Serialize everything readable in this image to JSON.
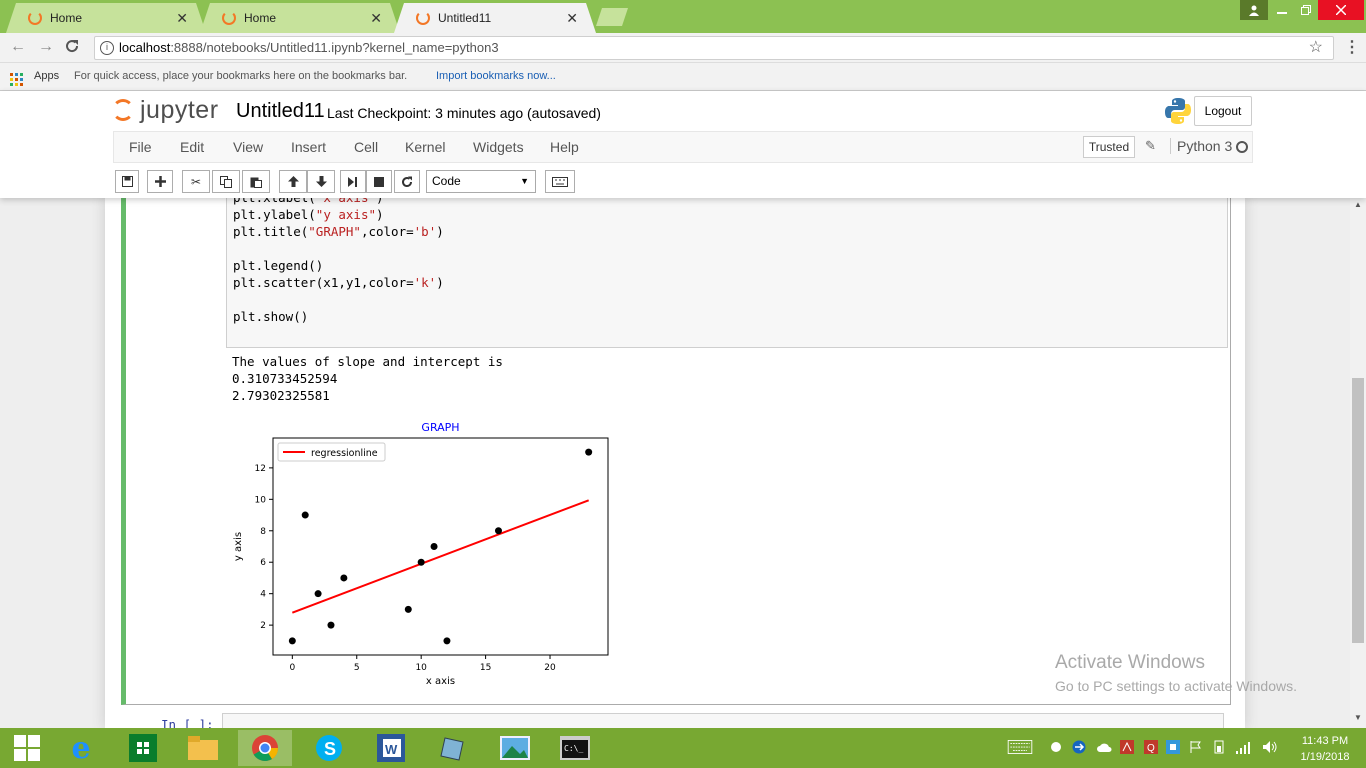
{
  "browser": {
    "tabs": [
      {
        "label": "Home"
      },
      {
        "label": "Home"
      },
      {
        "label": "Untitled11"
      }
    ],
    "tab_close": "✕",
    "url_host": "localhost",
    "url_rest": ":8888/notebooks/Untitled11.ipynb?kernel_name=python3",
    "bookmarks": {
      "apps_label": "Apps",
      "hint": "For quick access, place your bookmarks here on the bookmarks bar.",
      "import_link": "Import bookmarks now..."
    }
  },
  "jupyter": {
    "logo_text": "jupyter",
    "notebook_name": "Untitled11",
    "checkpoint": "Last Checkpoint: 3 minutes ago (autosaved)",
    "logout_label": "Logout",
    "menu": [
      "File",
      "Edit",
      "View",
      "Insert",
      "Cell",
      "Kernel",
      "Widgets",
      "Help"
    ],
    "trusted_label": "Trusted",
    "kernel_name": "Python 3",
    "cell_type": "Code",
    "toolbar_icons": [
      "save-icon",
      "plus-icon",
      "cut-icon",
      "copy-icon",
      "paste-icon",
      "arrow-up-icon",
      "arrow-down-icon",
      "run-icon",
      "stop-icon",
      "restart-icon"
    ]
  },
  "cell": {
    "code_lines": [
      {
        "pre": "plt.xlabel(",
        "str": "\"x axis\"",
        "post": ")"
      },
      {
        "pre": "plt.ylabel(",
        "str": "\"y axis\"",
        "post": ")"
      },
      {
        "pre": "plt.title(",
        "str": "\"GRAPH\"",
        "post": ",color=",
        "str2": "'b'",
        "post2": ")"
      },
      {
        "pre": "",
        "str": "",
        "post": ""
      },
      {
        "pre": "plt.legend()",
        "str": "",
        "post": ""
      },
      {
        "pre": "plt.scatter(x1,y1,color=",
        "str": "'k'",
        "post": ")"
      },
      {
        "pre": "",
        "str": "",
        "post": ""
      },
      {
        "pre": "plt.show()",
        "str": "",
        "post": ""
      }
    ],
    "output_lines": [
      "The values of slope and intercept is",
      "0.310733452594",
      "2.79302325581"
    ],
    "next_prompt": "In [ ]:"
  },
  "chart_data": {
    "type": "scatter",
    "title": "GRAPH",
    "title_color": "#0000ff",
    "xlabel": "x axis",
    "ylabel": "y axis",
    "xlim": [
      -1.5,
      24.5
    ],
    "ylim": [
      0.1,
      13.9
    ],
    "xticks": [
      0,
      5,
      10,
      15,
      20
    ],
    "yticks": [
      2,
      4,
      6,
      8,
      10,
      12
    ],
    "points": {
      "color": "#000000",
      "x": [
        0,
        1,
        2,
        3,
        4,
        9,
        10,
        11,
        12,
        16,
        23
      ],
      "y": [
        1,
        9,
        4,
        2,
        5,
        3,
        6,
        7,
        1,
        8,
        13
      ]
    },
    "line": {
      "name": "regressionline",
      "color": "#ff0000",
      "slope": 0.310733452594,
      "intercept": 2.79302325581,
      "x": [
        0,
        23
      ]
    },
    "legend_position": "upper left",
    "grid": false
  },
  "watermark": {
    "title": "Activate Windows",
    "subtitle": "Go to PC settings to activate Windows."
  },
  "taskbar": {
    "time": "11:43 PM",
    "date": "1/19/2018"
  }
}
